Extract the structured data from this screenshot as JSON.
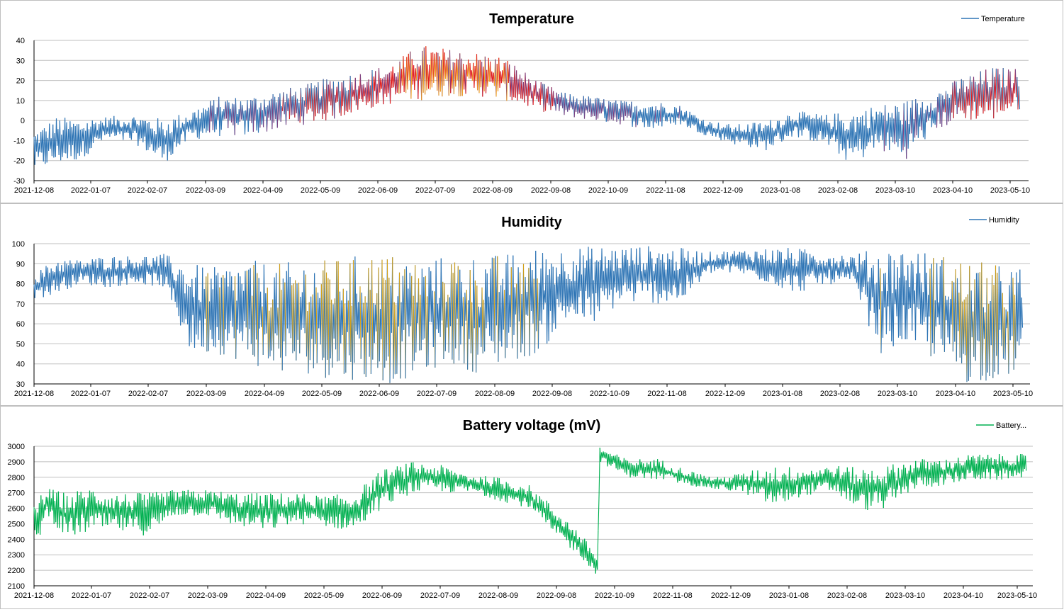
{
  "chart_data": [
    {
      "type": "line",
      "title": "Temperature",
      "legend": {
        "position": "top-right",
        "label": "Temperature"
      },
      "ylim": [
        -30,
        40
      ],
      "yticks": [
        "40",
        "30",
        "20",
        "10",
        "0",
        "-10",
        "-20",
        "-30"
      ],
      "xticks": [
        "2021-12-08",
        "2022-01-07",
        "2022-02-07",
        "2022-03-09",
        "2022-04-09",
        "2022-05-09",
        "2022-06-09",
        "2022-07-09",
        "2022-08-09",
        "2022-09-08",
        "2022-10-09",
        "2022-11-08",
        "2022-12-09",
        "2023-01-08",
        "2023-02-08",
        "2023-03-10",
        "2023-04-10",
        "2023-05-10"
      ],
      "grid": true,
      "colors": {
        "cold": "#2f75b5",
        "warm": "#7b3f7f",
        "hot": "#e02020",
        "peak": "#f0a020"
      },
      "series": [
        {
          "name": "Temperature",
          "color": "#2f75b5",
          "x": [
            "2021-12-08",
            "2021-12-20",
            "2022-01-01",
            "2022-01-15",
            "2022-02-01",
            "2022-02-15",
            "2022-03-01",
            "2022-03-15",
            "2022-04-01",
            "2022-04-15",
            "2022-05-01",
            "2022-05-15",
            "2022-06-01",
            "2022-06-15",
            "2022-07-01",
            "2022-07-15",
            "2022-08-01",
            "2022-08-15",
            "2022-09-01",
            "2022-09-15",
            "2022-10-01",
            "2022-10-15",
            "2022-11-01",
            "2022-11-15",
            "2022-12-01",
            "2022-12-15",
            "2023-01-01",
            "2023-01-15",
            "2023-02-01",
            "2023-02-15",
            "2023-03-01",
            "2023-03-15",
            "2023-04-01",
            "2023-04-15",
            "2023-05-01",
            "2023-05-15"
          ],
          "min": [
            -25,
            -22,
            -20,
            -10,
            -12,
            -22,
            -10,
            -8,
            -8,
            -5,
            -2,
            0,
            5,
            8,
            10,
            12,
            12,
            10,
            5,
            2,
            0,
            -2,
            -5,
            -2,
            -8,
            -12,
            -15,
            -8,
            -12,
            -22,
            -15,
            -20,
            -5,
            0,
            0,
            5
          ],
          "max": [
            -5,
            2,
            1,
            2,
            3,
            1,
            5,
            12,
            12,
            15,
            18,
            22,
            25,
            28,
            38,
            36,
            34,
            32,
            20,
            14,
            12,
            10,
            10,
            8,
            0,
            -2,
            0,
            5,
            3,
            5,
            8,
            10,
            15,
            22,
            27,
            26
          ]
        }
      ]
    },
    {
      "type": "line",
      "title": "Humidity",
      "legend": {
        "position": "top-right",
        "label": "Humidity"
      },
      "ylim": [
        30,
        100
      ],
      "yticks": [
        "100",
        "90",
        "80",
        "70",
        "60",
        "50",
        "40",
        "30"
      ],
      "xticks": [
        "2021-12-08",
        "2022-01-07",
        "2022-02-07",
        "2022-03-09",
        "2022-04-09",
        "2022-05-09",
        "2022-06-09",
        "2022-07-09",
        "2022-08-09",
        "2022-09-08",
        "2022-10-09",
        "2022-11-08",
        "2022-12-09",
        "2023-01-08",
        "2023-02-08",
        "2023-03-10",
        "2023-04-10",
        "2023-05-10"
      ],
      "grid": true,
      "colors": {
        "normal": "#2f75b5",
        "dry": "#d4a017"
      },
      "series": [
        {
          "name": "Humidity",
          "color": "#2f75b5",
          "x": [
            "2021-12-08",
            "2021-12-20",
            "2022-01-01",
            "2022-01-15",
            "2022-02-01",
            "2022-02-15",
            "2022-03-01",
            "2022-03-15",
            "2022-04-01",
            "2022-04-15",
            "2022-05-01",
            "2022-05-15",
            "2022-06-01",
            "2022-06-15",
            "2022-07-01",
            "2022-07-15",
            "2022-08-01",
            "2022-08-15",
            "2022-09-01",
            "2022-09-15",
            "2022-10-01",
            "2022-10-15",
            "2022-11-01",
            "2022-11-15",
            "2022-12-01",
            "2022-12-15",
            "2023-01-01",
            "2023-01-15",
            "2023-02-01",
            "2023-02-15",
            "2023-03-01",
            "2023-03-15",
            "2023-04-01",
            "2023-04-15",
            "2023-05-01",
            "2023-05-15"
          ],
          "min": [
            72,
            75,
            80,
            78,
            80,
            78,
            45,
            45,
            40,
            35,
            35,
            32,
            32,
            30,
            35,
            40,
            35,
            40,
            45,
            60,
            60,
            70,
            70,
            70,
            85,
            85,
            80,
            75,
            80,
            78,
            45,
            50,
            40,
            30,
            32,
            35
          ],
          "max": [
            85,
            93,
            92,
            94,
            94,
            95,
            90,
            88,
            92,
            90,
            92,
            92,
            95,
            95,
            92,
            94,
            94,
            95,
            98,
            98,
            99,
            99,
            99,
            98,
            96,
            97,
            98,
            98,
            96,
            95,
            98,
            98,
            95,
            92,
            90,
            88
          ]
        }
      ]
    },
    {
      "type": "line",
      "title": "Battery voltage (mV)",
      "legend": {
        "position": "top-right",
        "label": "Battery..."
      },
      "ylim": [
        2100,
        3000
      ],
      "yticks": [
        "3000",
        "2900",
        "2800",
        "2700",
        "2600",
        "2500",
        "2400",
        "2300",
        "2200",
        "2100"
      ],
      "xticks": [
        "2021-12-08",
        "2022-01-07",
        "2022-02-07",
        "2022-03-09",
        "2022-04-09",
        "2022-05-09",
        "2022-06-09",
        "2022-07-09",
        "2022-08-09",
        "2022-09-08",
        "2022-10-09",
        "2022-11-08",
        "2022-12-09",
        "2023-01-08",
        "2023-02-08",
        "2023-03-10",
        "2023-04-10",
        "2023-05-10"
      ],
      "grid": true,
      "series": [
        {
          "name": "Battery...",
          "color": "#00b050",
          "x": [
            "2021-12-08",
            "2021-12-15",
            "2021-12-25",
            "2022-01-07",
            "2022-01-20",
            "2022-02-07",
            "2022-02-20",
            "2022-03-09",
            "2022-03-25",
            "2022-04-09",
            "2022-04-25",
            "2022-05-09",
            "2022-05-25",
            "2022-06-09",
            "2022-06-25",
            "2022-07-09",
            "2022-07-25",
            "2022-08-09",
            "2022-08-25",
            "2022-09-08",
            "2022-09-20",
            "2022-09-30",
            "2022-10-01",
            "2022-10-15",
            "2022-11-01",
            "2022-11-15",
            "2022-12-01",
            "2022-12-15",
            "2023-01-01",
            "2023-01-15",
            "2023-02-01",
            "2023-02-15",
            "2023-03-01",
            "2023-03-15",
            "2023-04-01",
            "2023-04-15",
            "2023-05-01",
            "2023-05-15"
          ],
          "min": [
            2320,
            2550,
            2400,
            2450,
            2450,
            2420,
            2550,
            2550,
            2480,
            2450,
            2500,
            2480,
            2450,
            2600,
            2700,
            2700,
            2700,
            2650,
            2600,
            2400,
            2300,
            2150,
            2900,
            2800,
            2780,
            2750,
            2720,
            2700,
            2600,
            2680,
            2700,
            2580,
            2600,
            2720,
            2750,
            2780,
            2780,
            2800
          ],
          "max": [
            2650,
            2730,
            2700,
            2740,
            2700,
            2700,
            2720,
            2720,
            2700,
            2700,
            2700,
            2680,
            2700,
            2850,
            2900,
            2880,
            2820,
            2800,
            2750,
            2600,
            2450,
            2300,
            3000,
            2920,
            2920,
            2850,
            2800,
            2830,
            2880,
            2860,
            2880,
            2860,
            2880,
            2920,
            2920,
            2950,
            2950,
            2950
          ]
        }
      ]
    }
  ]
}
